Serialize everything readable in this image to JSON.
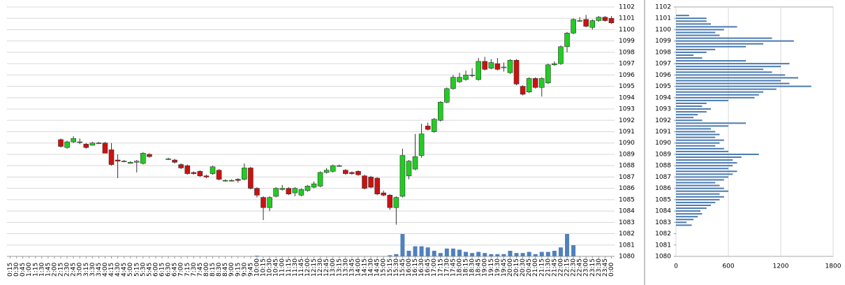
{
  "chart_data": [
    {
      "type": "candlestick",
      "categories": [
        "0:15",
        "0:30",
        "0:45",
        "1:00",
        "1:15",
        "1:30",
        "1:45",
        "2:00",
        "2:15",
        "2:30",
        "2:45",
        "3:00",
        "3:15",
        "3:30",
        "3:45",
        "4:00",
        "4:15",
        "4:30",
        "4:45",
        "5:00",
        "5:15",
        "5:30",
        "5:45",
        "6:00",
        "6:15",
        "6:30",
        "6:45",
        "7:00",
        "7:15",
        "7:30",
        "7:45",
        "8:00",
        "8:15",
        "8:30",
        "8:45",
        "9:00",
        "9:15",
        "9:30",
        "9:45",
        "10:00",
        "10:15",
        "10:30",
        "10:45",
        "11:00",
        "11:15",
        "11:30",
        "11:45",
        "12:00",
        "12:15",
        "12:30",
        "12:45",
        "13:00",
        "13:15",
        "13:30",
        "13:45",
        "14:00",
        "14:15",
        "14:30",
        "14:45",
        "15:00",
        "15:15",
        "15:30",
        "15:45",
        "16:00",
        "16:15",
        "16:30",
        "16:45",
        "17:00",
        "17:15",
        "17:30",
        "17:45",
        "18:00",
        "18:15",
        "18:30",
        "18:45",
        "19:00",
        "19:15",
        "19:30",
        "19:45",
        "20:00",
        "20:15",
        "20:30",
        "20:45",
        "21:00",
        "21:15",
        "21:30",
        "21:45",
        "22:00",
        "22:15",
        "22:30",
        "22:45",
        "23:00",
        "23:15",
        "23:30",
        "23:45",
        "0:00"
      ],
      "open": [
        null,
        null,
        null,
        null,
        null,
        null,
        null,
        null,
        1090.3,
        1089.6,
        1090.1,
        1090.1,
        1089.9,
        1089.8,
        1090.0,
        1090.0,
        1089.4,
        1088.5,
        1088.4,
        1088.2,
        1088.3,
        1088.2,
        1089.0,
        null,
        null,
        1088.6,
        1088.5,
        1088.1,
        1088.0,
        1087.4,
        1087.5,
        1087.1,
        1087.3,
        1087.6,
        1086.7,
        1086.7,
        1086.8,
        1086.8,
        1087.8,
        1086.0,
        1085.2,
        1084.3,
        1085.3,
        1085.9,
        1086.0,
        1085.6,
        1085.4,
        1085.8,
        1086.1,
        1086.2,
        1087.4,
        1087.5,
        1088.0,
        1087.6,
        1087.4,
        1087.5,
        1087.1,
        1087.0,
        1086.9,
        1085.6,
        1085.4,
        1084.3,
        1085.3,
        1087.1,
        1087.7,
        1088.9,
        1091.5,
        1091.0,
        1092.0,
        1093.6,
        1094.8,
        1095.4,
        1095.6,
        1096.0,
        1095.6,
        1097.2,
        1096.6,
        1097.0,
        1096.7,
        1096.2,
        1097.3,
        1095.0,
        1094.5,
        1095.7,
        1094.9,
        1095.3,
        1096.9,
        1097.0,
        1098.5,
        1099.7,
        1100.8,
        1100.9,
        1100.2,
        1100.8,
        1101.1,
        1101.0
      ],
      "high": [
        null,
        null,
        null,
        null,
        null,
        null,
        null,
        null,
        1090.4,
        1090.2,
        1090.6,
        1090.4,
        1090.0,
        1090.1,
        1090.1,
        1090.1,
        1090.0,
        1089.0,
        1088.5,
        1088.4,
        1088.5,
        1089.2,
        1089.1,
        null,
        null,
        1088.7,
        1088.6,
        1088.2,
        1088.1,
        1087.5,
        1087.6,
        1087.2,
        1088.0,
        1087.7,
        1086.8,
        1086.8,
        1086.9,
        1088.2,
        1087.9,
        1086.1,
        1085.3,
        1085.3,
        1086.1,
        1086.3,
        1086.1,
        1086.1,
        1086.0,
        1086.3,
        1086.6,
        1087.5,
        1087.8,
        1088.1,
        1088.1,
        1087.7,
        1087.5,
        1087.6,
        1087.2,
        1087.1,
        1087.0,
        1085.8,
        1085.5,
        1085.3,
        1089.5,
        1088.5,
        1090.8,
        1091.7,
        1091.8,
        1092.2,
        1093.7,
        1094.9,
        1096.0,
        1096.2,
        1096.4,
        1096.6,
        1097.5,
        1097.6,
        1097.4,
        1097.5,
        1097.1,
        1097.4,
        1097.4,
        1095.1,
        1095.8,
        1095.8,
        1095.8,
        1097.0,
        1097.2,
        1098.6,
        1099.8,
        1101.0,
        1101.1,
        1101.3,
        1100.9,
        1101.2,
        1101.2,
        1101.2
      ],
      "low": [
        null,
        null,
        null,
        null,
        null,
        null,
        null,
        null,
        1089.6,
        1089.5,
        1090.0,
        1089.9,
        1089.5,
        1089.8,
        1089.9,
        1089.1,
        1088.0,
        1086.9,
        1088.3,
        1088.2,
        1087.4,
        1088.1,
        1088.7,
        null,
        null,
        1088.5,
        1088.2,
        1087.7,
        1087.2,
        1087.2,
        1087.0,
        1086.9,
        1087.2,
        1086.7,
        1086.6,
        1086.6,
        1086.5,
        1086.7,
        1085.9,
        1085.2,
        1083.2,
        1084.0,
        1085.2,
        1085.8,
        1085.4,
        1085.3,
        1085.3,
        1085.7,
        1086.0,
        1086.1,
        1087.3,
        1087.4,
        1087.9,
        1087.2,
        1087.2,
        1087.1,
        1085.9,
        1086.0,
        1085.4,
        1085.3,
        1084.1,
        1082.8,
        1085.2,
        1086.8,
        1087.6,
        1088.7,
        1091.1,
        1090.9,
        1091.9,
        1093.5,
        1094.7,
        1095.3,
        1095.5,
        1095.8,
        1095.5,
        1096.4,
        1096.5,
        1096.4,
        1096.3,
        1096.1,
        1095.1,
        1094.2,
        1094.4,
        1094.8,
        1094.1,
        1095.2,
        1096.8,
        1096.9,
        1098.0,
        1099.6,
        1100.7,
        1100.2,
        1100.0,
        1100.7,
        1100.7,
        1100.5
      ],
      "close": [
        null,
        null,
        null,
        null,
        null,
        null,
        null,
        null,
        1089.7,
        1090.1,
        1090.4,
        1090.1,
        1089.6,
        1090.0,
        1090.0,
        1089.1,
        1088.1,
        1088.4,
        1088.4,
        1088.3,
        1088.4,
        1089.1,
        1088.8,
        null,
        null,
        1088.6,
        1088.3,
        1087.8,
        1087.3,
        1087.3,
        1087.1,
        1087.0,
        1087.9,
        1086.8,
        1086.7,
        1086.7,
        1086.7,
        1087.8,
        1086.0,
        1085.4,
        1084.3,
        1085.2,
        1086.0,
        1086.0,
        1085.5,
        1086.0,
        1085.9,
        1086.2,
        1086.4,
        1087.4,
        1087.6,
        1088.0,
        1088.0,
        1087.3,
        1087.3,
        1087.2,
        1086.0,
        1086.1,
        1085.5,
        1085.4,
        1084.3,
        1085.2,
        1088.9,
        1088.4,
        1088.8,
        1090.8,
        1091.2,
        1092.1,
        1093.6,
        1094.8,
        1095.8,
        1095.8,
        1096.0,
        1096.0,
        1097.2,
        1096.5,
        1097.1,
        1096.5,
        1096.7,
        1097.3,
        1095.2,
        1094.3,
        1095.7,
        1094.9,
        1095.7,
        1096.9,
        1097.0,
        1098.5,
        1099.7,
        1100.9,
        1100.8,
        1100.3,
        1100.8,
        1101.1,
        1100.8,
        1100.6
      ],
      "volume": [
        null,
        null,
        null,
        null,
        null,
        null,
        null,
        null,
        null,
        null,
        null,
        null,
        null,
        null,
        null,
        null,
        null,
        null,
        null,
        null,
        null,
        null,
        null,
        null,
        null,
        null,
        null,
        null,
        null,
        null,
        null,
        null,
        null,
        null,
        null,
        null,
        null,
        null,
        null,
        3,
        null,
        null,
        null,
        null,
        null,
        null,
        null,
        null,
        null,
        null,
        null,
        null,
        null,
        null,
        null,
        null,
        null,
        null,
        null,
        null,
        5,
        10,
        100,
        25,
        45,
        45,
        40,
        25,
        15,
        35,
        35,
        30,
        20,
        15,
        20,
        15,
        10,
        10,
        10,
        25,
        15,
        15,
        20,
        10,
        20,
        20,
        25,
        40,
        100,
        50,
        null,
        null,
        null,
        null,
        null,
        null
      ],
      "up_color": "#22cc22",
      "down_color": "#cc1111",
      "volume_color": "#4f81bd",
      "ylim": [
        1080,
        1102
      ],
      "yticks": [
        1080,
        1081,
        1082,
        1083,
        1084,
        1085,
        1086,
        1087,
        1088,
        1089,
        1090,
        1091,
        1092,
        1093,
        1094,
        1095,
        1096,
        1097,
        1098,
        1099,
        1100,
        1101,
        1102
      ],
      "grid": true
    },
    {
      "type": "barh",
      "y": [
        1082.75,
        1083.0,
        1083.25,
        1083.5,
        1083.75,
        1084.0,
        1084.25,
        1084.5,
        1084.75,
        1085.0,
        1085.25,
        1085.5,
        1085.75,
        1086.0,
        1086.25,
        1086.5,
        1086.75,
        1087.0,
        1087.25,
        1087.5,
        1087.75,
        1088.0,
        1088.25,
        1088.5,
        1088.75,
        1089.0,
        1089.25,
        1089.5,
        1089.75,
        1090.0,
        1090.25,
        1090.5,
        1090.75,
        1091.0,
        1091.25,
        1091.5,
        1091.75,
        1092.0,
        1092.25,
        1092.5,
        1092.75,
        1093.0,
        1093.25,
        1093.5,
        1093.75,
        1094.0,
        1094.25,
        1094.5,
        1094.75,
        1095.0,
        1095.25,
        1095.5,
        1095.75,
        1096.0,
        1096.25,
        1096.5,
        1096.75,
        1097.0,
        1097.25,
        1097.5,
        1097.75,
        1098.0,
        1098.25,
        1098.5,
        1098.75,
        1099.0,
        1099.25,
        1099.5,
        1099.75,
        1100.0,
        1100.25,
        1100.5,
        1100.75,
        1101.0,
        1101.25
      ],
      "values": [
        180,
        120,
        200,
        250,
        300,
        280,
        350,
        400,
        450,
        500,
        550,
        500,
        600,
        550,
        500,
        450,
        550,
        600,
        650,
        700,
        600,
        650,
        700,
        650,
        750,
        950,
        600,
        550,
        450,
        500,
        550,
        450,
        500,
        450,
        400,
        600,
        800,
        300,
        200,
        250,
        350,
        400,
        300,
        350,
        600,
        900,
        950,
        1000,
        1150,
        1550,
        1300,
        1200,
        1400,
        1250,
        1100,
        1000,
        1200,
        1300,
        800,
        300,
        200,
        350,
        450,
        800,
        1000,
        1350,
        1100,
        500,
        450,
        550,
        700,
        400,
        350,
        350,
        150
      ],
      "color": "#4a7ab0",
      "xlim": [
        0,
        1800
      ],
      "xticks": [
        0,
        600,
        1200,
        1800
      ],
      "ylim": [
        1080,
        1102
      ],
      "yticks": [
        1080,
        1081,
        1082,
        1083,
        1084,
        1085,
        1086,
        1087,
        1088,
        1089,
        1090,
        1091,
        1092,
        1093,
        1094,
        1095,
        1096,
        1097,
        1098,
        1099,
        1100,
        1101,
        1102
      ],
      "grid": true
    }
  ]
}
